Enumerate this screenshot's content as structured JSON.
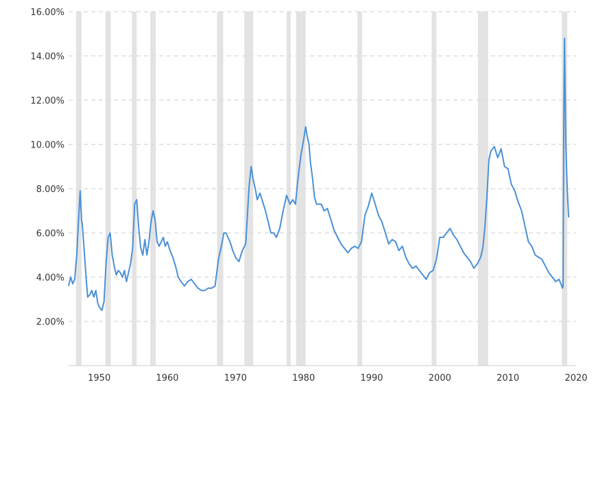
{
  "chart_data": {
    "type": "line",
    "title": "",
    "xlabel": "",
    "ylabel": "",
    "xlim": [
      1945.5,
      2020
    ],
    "ylim": [
      0,
      16
    ],
    "grid": true,
    "y_ticks": [
      {
        "value": 2,
        "label": "2.00%"
      },
      {
        "value": 4,
        "label": "4.00%"
      },
      {
        "value": 6,
        "label": "6.00%"
      },
      {
        "value": 8,
        "label": "8.00%"
      },
      {
        "value": 10,
        "label": "10.00%"
      },
      {
        "value": 12,
        "label": "12.00%"
      },
      {
        "value": 14,
        "label": "14.00%"
      },
      {
        "value": 16,
        "label": "16.00%"
      }
    ],
    "x_ticks": [
      {
        "value": 1950,
        "label": "1950"
      },
      {
        "value": 1960,
        "label": "1960"
      },
      {
        "value": 1970,
        "label": "1970"
      },
      {
        "value": 1980,
        "label": "1980"
      },
      {
        "value": 1990,
        "label": "1990"
      },
      {
        "value": 2000,
        "label": "2000"
      },
      {
        "value": 2010,
        "label": "2010"
      },
      {
        "value": 2020,
        "label": "2020"
      }
    ],
    "shaded_periods": [
      [
        1946.6,
        1947.4
      ],
      [
        1950.9,
        1951.7
      ],
      [
        1954.8,
        1955.5
      ],
      [
        1957.5,
        1958.3
      ],
      [
        1967.3,
        1968.2
      ],
      [
        1971.3,
        1972.6
      ],
      [
        1977.5,
        1978.1
      ],
      [
        1978.9,
        1980.3
      ],
      [
        1987.9,
        1988.6
      ],
      [
        1998.8,
        1999.5
      ],
      [
        2005.6,
        2007.1
      ],
      [
        2017.9,
        2018.7
      ]
    ],
    "series": [
      {
        "color": "#4a90d6",
        "x": [
          1945.5,
          1945.8,
          1946.1,
          1946.4,
          1946.7,
          1947.0,
          1947.2,
          1947.4,
          1947.5,
          1947.6,
          1947.8,
          1948.0,
          1948.3,
          1948.6,
          1948.9,
          1949.2,
          1949.5,
          1949.8,
          1950.1,
          1950.4,
          1950.7,
          1951.0,
          1951.3,
          1951.6,
          1951.9,
          1952.2,
          1952.5,
          1952.8,
          1953.1,
          1953.4,
          1953.7,
          1954.0,
          1954.3,
          1954.6,
          1954.9,
          1955.2,
          1955.5,
          1955.8,
          1956.1,
          1956.4,
          1956.7,
          1957.0,
          1957.3,
          1957.6,
          1957.9,
          1958.2,
          1958.5,
          1958.8,
          1959.1,
          1959.4,
          1959.7,
          1960.0,
          1960.4,
          1960.8,
          1961.2,
          1961.6,
          1962.0,
          1962.5,
          1963.0,
          1963.5,
          1964.0,
          1964.5,
          1965.0,
          1965.5,
          1966.0,
          1966.5,
          1967.0,
          1967.5,
          1968.0,
          1968.3,
          1968.6,
          1968.9,
          1969.2,
          1969.6,
          1970.0,
          1970.5,
          1971.0,
          1971.5,
          1972.0,
          1972.3,
          1972.6,
          1972.9,
          1973.2,
          1973.6,
          1974.0,
          1974.4,
          1974.8,
          1975.2,
          1975.6,
          1976.0,
          1976.5,
          1977.0,
          1977.5,
          1978.0,
          1978.4,
          1978.8,
          1979.2,
          1979.6,
          1980.0,
          1980.3,
          1980.5,
          1980.8,
          1981.0,
          1981.3,
          1981.6,
          1981.9,
          1982.2,
          1982.6,
          1983.0,
          1983.5,
          1984.0,
          1984.5,
          1985.0,
          1985.5,
          1986.0,
          1986.5,
          1987.0,
          1987.5,
          1988.0,
          1988.5,
          1989.0,
          1989.5,
          1990.0,
          1990.3,
          1990.7,
          1991.0,
          1991.5,
          1992.0,
          1992.5,
          1993.0,
          1993.5,
          1994.0,
          1994.5,
          1995.0,
          1995.5,
          1996.0,
          1996.5,
          1997.0,
          1997.5,
          1998.0,
          1998.5,
          1999.0,
          1999.5,
          2000.0,
          2000.5,
          2001.0,
          2001.5,
          2002.0,
          2002.5,
          2003.0,
          2003.5,
          2004.0,
          2004.5,
          2005.0,
          2005.5,
          2006.0,
          2006.3,
          2006.6,
          2006.9,
          2007.2,
          2007.5,
          2008.0,
          2008.5,
          2009.0,
          2009.5,
          2010.0,
          2010.5,
          2011.0,
          2011.5,
          2012.0,
          2012.5,
          2013.0,
          2013.5,
          2014.0,
          2014.5,
          2015.0,
          2015.5,
          2016.0,
          2016.5,
          2017.0,
          2017.5,
          2017.9,
          2018.0,
          2018.1,
          2018.2,
          2018.3,
          2018.5,
          2018.7,
          2018.9
        ],
        "values": [
          3.6,
          4.0,
          3.7,
          3.9,
          5.0,
          6.8,
          7.9,
          6.6,
          6.4,
          6.0,
          5.2,
          4.3,
          3.1,
          3.2,
          3.4,
          3.1,
          3.4,
          2.8,
          2.6,
          2.5,
          2.9,
          4.6,
          5.8,
          6.0,
          5.0,
          4.5,
          4.1,
          4.3,
          4.2,
          4.0,
          4.3,
          3.8,
          4.2,
          4.6,
          5.3,
          7.3,
          7.5,
          6.2,
          5.3,
          5.0,
          5.7,
          5.0,
          5.6,
          6.5,
          7.0,
          6.6,
          5.6,
          5.4,
          5.6,
          5.8,
          5.4,
          5.6,
          5.2,
          4.9,
          4.5,
          4.0,
          3.8,
          3.6,
          3.8,
          3.9,
          3.7,
          3.5,
          3.4,
          3.4,
          3.5,
          3.5,
          3.6,
          4.8,
          5.5,
          6.0,
          6.0,
          5.8,
          5.6,
          5.2,
          4.9,
          4.7,
          5.2,
          5.5,
          8.1,
          9.0,
          8.4,
          8.0,
          7.5,
          7.8,
          7.4,
          7.0,
          6.5,
          6.0,
          6.0,
          5.8,
          6.2,
          7.0,
          7.7,
          7.3,
          7.5,
          7.3,
          8.5,
          9.5,
          10.2,
          10.8,
          10.4,
          10.0,
          9.2,
          8.5,
          7.6,
          7.3,
          7.3,
          7.3,
          7.0,
          7.1,
          6.6,
          6.1,
          5.8,
          5.5,
          5.3,
          5.1,
          5.3,
          5.4,
          5.3,
          5.6,
          6.8,
          7.2,
          7.8,
          7.5,
          7.1,
          6.8,
          6.5,
          6.0,
          5.5,
          5.7,
          5.6,
          5.2,
          5.4,
          4.9,
          4.6,
          4.4,
          4.5,
          4.3,
          4.1,
          3.9,
          4.2,
          4.3,
          4.8,
          5.8,
          5.8,
          6.0,
          6.2,
          5.9,
          5.7,
          5.4,
          5.1,
          4.9,
          4.7,
          4.4,
          4.6,
          4.9,
          5.3,
          6.2,
          7.6,
          9.3,
          9.7,
          9.9,
          9.4,
          9.8,
          9.0,
          8.9,
          8.2,
          7.9,
          7.4,
          7.0,
          6.3,
          5.6,
          5.4,
          5.0,
          4.9,
          4.8,
          4.5,
          4.2,
          4.0,
          3.8,
          3.9,
          3.6,
          3.5,
          3.6,
          11.0,
          14.8,
          9.9,
          8.0,
          6.7
        ]
      }
    ]
  }
}
